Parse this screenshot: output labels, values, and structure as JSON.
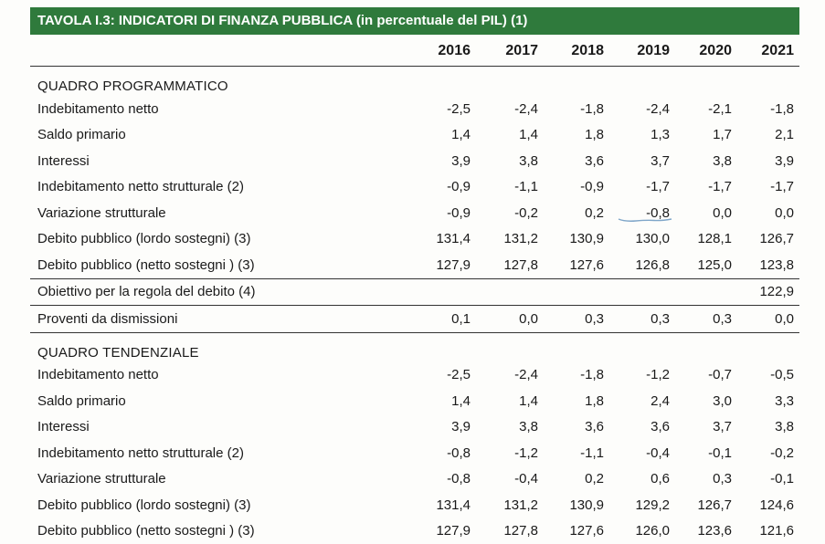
{
  "title": "TAVOLA I.3: INDICATORI DI FINANZA PUBBLICA (in percentuale del PIL) (1)",
  "years": [
    "2016",
    "2017",
    "2018",
    "2019",
    "2020",
    "2021"
  ],
  "sections": [
    {
      "heading": "QUADRO PROGRAMMATICO",
      "rows": [
        {
          "label": "Indebitamento netto",
          "values": [
            "-2,5",
            "-2,4",
            "-1,8",
            "-2,4",
            "-2,1",
            "-1,8"
          ]
        },
        {
          "label": "Saldo primario",
          "values": [
            "1,4",
            "1,4",
            "1,8",
            "1,3",
            "1,7",
            "2,1"
          ]
        },
        {
          "label": "Interessi",
          "values": [
            "3,9",
            "3,8",
            "3,6",
            "3,7",
            "3,8",
            "3,9"
          ]
        },
        {
          "label": "Indebitamento netto strutturale (2)",
          "values": [
            "-0,9",
            "-1,1",
            "-0,9",
            "-1,7",
            "-1,7",
            "-1,7"
          ]
        },
        {
          "label": "Variazione strutturale",
          "values": [
            "-0,9",
            "-0,2",
            "0,2",
            "-0,8",
            "0,0",
            "0,0"
          ]
        },
        {
          "label": "Debito pubblico  (lordo sostegni) (3)",
          "values": [
            "131,4",
            "131,2",
            "130,9",
            "130,0",
            "128,1",
            "126,7"
          ]
        },
        {
          "label": "Debito pubblico (netto sostegni ) (3)",
          "values": [
            "127,9",
            "127,8",
            "127,6",
            "126,8",
            "125,0",
            "123,8"
          ]
        },
        {
          "label": "Obiettivo per la regola del debito (4)",
          "values": [
            "",
            "",
            "",
            "",
            "",
            "122,9"
          ]
        },
        {
          "label": "Proventi da dismissioni",
          "values": [
            "0,1",
            "0,0",
            "0,3",
            "0,3",
            "0,3",
            "0,0"
          ]
        }
      ]
    },
    {
      "heading": "QUADRO TENDENZIALE",
      "rows": [
        {
          "label": "Indebitamento netto",
          "values": [
            "-2,5",
            "-2,4",
            "-1,8",
            "-1,2",
            "-0,7",
            "-0,5"
          ]
        },
        {
          "label": "Saldo primario",
          "values": [
            "1,4",
            "1,4",
            "1,8",
            "2,4",
            "3,0",
            "3,3"
          ]
        },
        {
          "label": "Interessi",
          "values": [
            "3,9",
            "3,8",
            "3,6",
            "3,6",
            "3,7",
            "3,8"
          ]
        },
        {
          "label": "Indebitamento netto strutturale (2)",
          "values": [
            "-0,8",
            "-1,2",
            "-1,1",
            "-0,4",
            "-0,1",
            "-0,2"
          ]
        },
        {
          "label": "Variazione strutturale",
          "values": [
            "-0,8",
            "-0,4",
            "0,2",
            "0,6",
            "0,3",
            "-0,1"
          ]
        },
        {
          "label": "Debito pubblico  (lordo sostegni) (3)",
          "values": [
            "131,4",
            "131,2",
            "130,9",
            "129,2",
            "126,7",
            "124,6"
          ]
        },
        {
          "label": "Debito pubblico (netto sostegni ) (3)",
          "values": [
            "127,9",
            "127,8",
            "127,6",
            "126,0",
            "123,6",
            "121,6"
          ]
        }
      ]
    }
  ],
  "colors": {
    "title_bg": "#2f7a3c",
    "title_text": "#ffffff",
    "rule": "#333333",
    "annotation": "#7fa6c9"
  }
}
